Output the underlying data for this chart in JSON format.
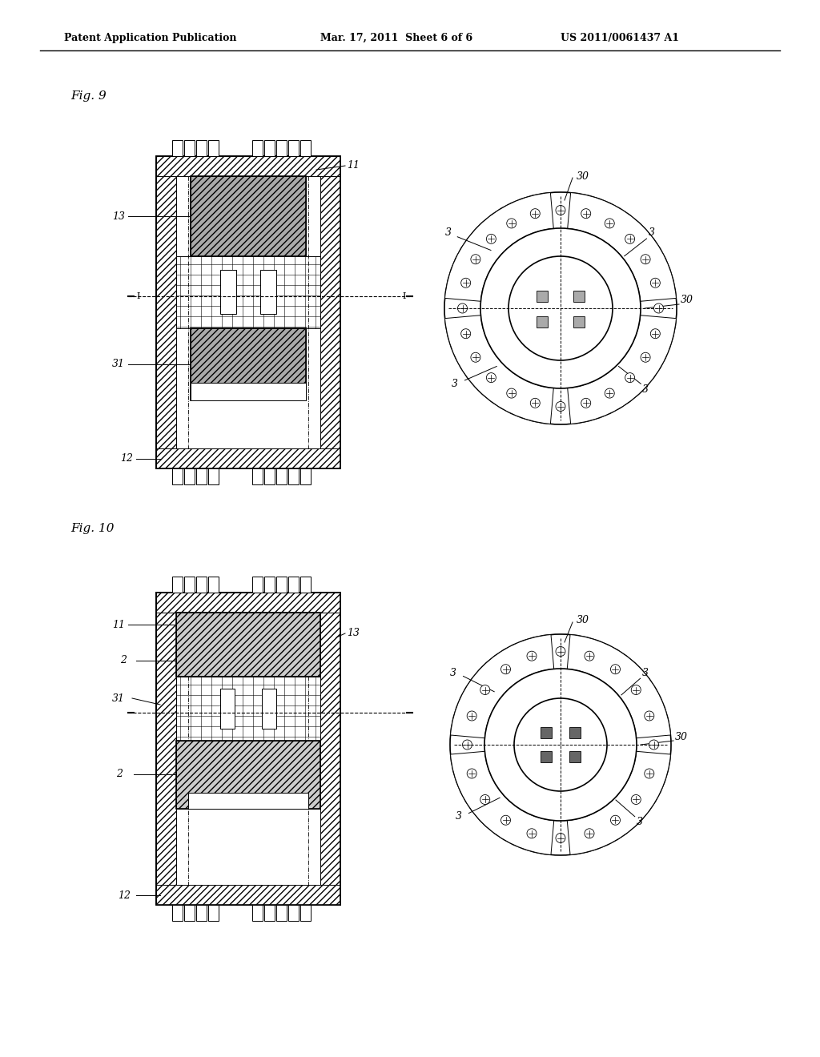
{
  "header_left": "Patent Application Publication",
  "header_mid": "Mar. 17, 2011  Sheet 6 of 6",
  "header_right": "US 2011/0061437 A1",
  "fig9_label": "Fig. 9",
  "fig10_label": "Fig. 10",
  "bg_color": "#ffffff",
  "line_color": "#000000"
}
